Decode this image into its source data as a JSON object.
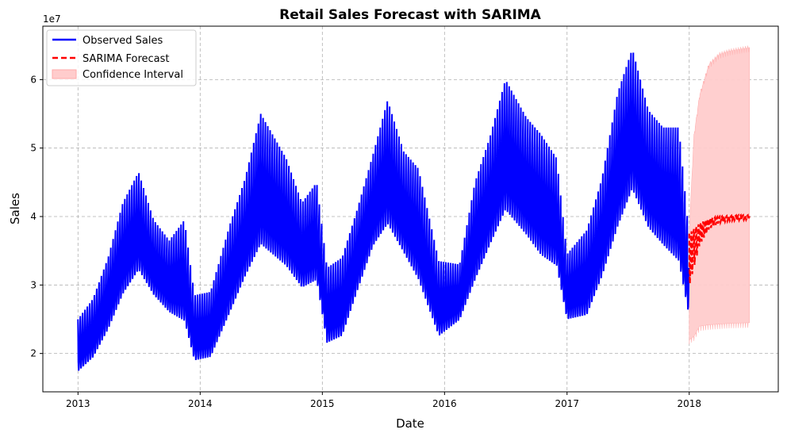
{
  "chart_data": {
    "type": "line",
    "title": "Retail Sales Forecast with SARIMA",
    "xlabel": "Date",
    "ylabel": "Sales",
    "y_scale_label": "1e7",
    "xlim": [
      "2012-09-18",
      "2018-09-24"
    ],
    "ylim": [
      14400000,
      67800000
    ],
    "x_ticks": [
      {
        "value": "2013-01-01",
        "label": "2013"
      },
      {
        "value": "2014-01-01",
        "label": "2014"
      },
      {
        "value": "2015-01-01",
        "label": "2015"
      },
      {
        "value": "2016-01-01",
        "label": "2016"
      },
      {
        "value": "2017-01-01",
        "label": "2017"
      },
      {
        "value": "2018-01-01",
        "label": "2018"
      }
    ],
    "y_ticks": [
      {
        "value": 20000000,
        "label": "2"
      },
      {
        "value": 30000000,
        "label": "3"
      },
      {
        "value": 40000000,
        "label": "4"
      },
      {
        "value": 50000000,
        "label": "5"
      },
      {
        "value": 60000000,
        "label": "6"
      }
    ],
    "grid": true,
    "legend_position": "top-left",
    "series": [
      {
        "name": "Observed Sales",
        "color": "#0000ff",
        "style": "solid",
        "envelope_upper": [
          {
            "x": "2013-01-01",
            "y": 25000000
          },
          {
            "x": "2013-02-15",
            "y": 28000000
          },
          {
            "x": "2013-04-01",
            "y": 34000000
          },
          {
            "x": "2013-05-15",
            "y": 42000000
          },
          {
            "x": "2013-07-01",
            "y": 46500000
          },
          {
            "x": "2013-08-15",
            "y": 39500000
          },
          {
            "x": "2013-10-01",
            "y": 36500000
          },
          {
            "x": "2013-11-15",
            "y": 39500000
          },
          {
            "x": "2013-12-15",
            "y": 28500000
          },
          {
            "x": "2014-02-01",
            "y": 29000000
          },
          {
            "x": "2014-04-01",
            "y": 39000000
          },
          {
            "x": "2014-05-15",
            "y": 45500000
          },
          {
            "x": "2014-07-01",
            "y": 55000000
          },
          {
            "x": "2014-09-15",
            "y": 48500000
          },
          {
            "x": "2014-11-01",
            "y": 42000000
          },
          {
            "x": "2014-12-15",
            "y": 45000000
          },
          {
            "x": "2015-01-15",
            "y": 32500000
          },
          {
            "x": "2015-03-01",
            "y": 34000000
          },
          {
            "x": "2015-04-15",
            "y": 41000000
          },
          {
            "x": "2015-06-01",
            "y": 49000000
          },
          {
            "x": "2015-07-15",
            "y": 57000000
          },
          {
            "x": "2015-09-01",
            "y": 49500000
          },
          {
            "x": "2015-10-15",
            "y": 47000000
          },
          {
            "x": "2015-12-15",
            "y": 33500000
          },
          {
            "x": "2016-02-15",
            "y": 33000000
          },
          {
            "x": "2016-04-01",
            "y": 45000000
          },
          {
            "x": "2016-05-15",
            "y": 51500000
          },
          {
            "x": "2016-07-01",
            "y": 60000000
          },
          {
            "x": "2016-09-01",
            "y": 54500000
          },
          {
            "x": "2016-10-15",
            "y": 52000000
          },
          {
            "x": "2016-12-01",
            "y": 48500000
          },
          {
            "x": "2017-01-01",
            "y": 34500000
          },
          {
            "x": "2017-03-01",
            "y": 38000000
          },
          {
            "x": "2017-04-15",
            "y": 45500000
          },
          {
            "x": "2017-06-01",
            "y": 58000000
          },
          {
            "x": "2017-07-15",
            "y": 64500000
          },
          {
            "x": "2017-09-01",
            "y": 55500000
          },
          {
            "x": "2017-10-15",
            "y": 53000000
          },
          {
            "x": "2017-12-01",
            "y": 53000000
          },
          {
            "x": "2017-12-31",
            "y": 37500000
          }
        ],
        "envelope_lower": [
          {
            "x": "2013-01-01",
            "y": 17000000
          },
          {
            "x": "2013-02-15",
            "y": 19000000
          },
          {
            "x": "2013-04-01",
            "y": 23000000
          },
          {
            "x": "2013-05-15",
            "y": 28000000
          },
          {
            "x": "2013-07-01",
            "y": 31500000
          },
          {
            "x": "2013-08-15",
            "y": 28000000
          },
          {
            "x": "2013-10-01",
            "y": 25500000
          },
          {
            "x": "2013-11-15",
            "y": 24000000
          },
          {
            "x": "2013-12-15",
            "y": 18500000
          },
          {
            "x": "2014-02-01",
            "y": 19000000
          },
          {
            "x": "2014-04-01",
            "y": 25500000
          },
          {
            "x": "2014-05-15",
            "y": 30500000
          },
          {
            "x": "2014-07-01",
            "y": 35000000
          },
          {
            "x": "2014-09-15",
            "y": 32000000
          },
          {
            "x": "2014-11-01",
            "y": 29000000
          },
          {
            "x": "2014-12-15",
            "y": 30000000
          },
          {
            "x": "2015-01-15",
            "y": 21000000
          },
          {
            "x": "2015-03-01",
            "y": 22000000
          },
          {
            "x": "2015-04-15",
            "y": 28500000
          },
          {
            "x": "2015-06-01",
            "y": 35000000
          },
          {
            "x": "2015-07-15",
            "y": 38000000
          },
          {
            "x": "2015-09-01",
            "y": 34000000
          },
          {
            "x": "2015-10-15",
            "y": 30000000
          },
          {
            "x": "2015-12-15",
            "y": 22000000
          },
          {
            "x": "2016-02-15",
            "y": 24500000
          },
          {
            "x": "2016-04-01",
            "y": 30000000
          },
          {
            "x": "2016-05-15",
            "y": 35000000
          },
          {
            "x": "2016-07-01",
            "y": 40000000
          },
          {
            "x": "2016-09-01",
            "y": 36500000
          },
          {
            "x": "2016-10-15",
            "y": 33500000
          },
          {
            "x": "2016-12-01",
            "y": 32000000
          },
          {
            "x": "2017-01-01",
            "y": 24500000
          },
          {
            "x": "2017-03-01",
            "y": 25000000
          },
          {
            "x": "2017-04-15",
            "y": 30500000
          },
          {
            "x": "2017-06-01",
            "y": 37500000
          },
          {
            "x": "2017-07-15",
            "y": 43000000
          },
          {
            "x": "2017-09-01",
            "y": 37500000
          },
          {
            "x": "2017-10-15",
            "y": 35000000
          },
          {
            "x": "2017-12-01",
            "y": 32500000
          },
          {
            "x": "2017-12-31",
            "y": 25000000
          }
        ]
      },
      {
        "name": "SARIMA Forecast",
        "color": "#ff0000",
        "style": "dashed",
        "envelope_upper": [
          {
            "x": "2018-01-01",
            "y": 37500000
          },
          {
            "x": "2018-02-01",
            "y": 39000000
          },
          {
            "x": "2018-03-01",
            "y": 39700000
          },
          {
            "x": "2018-04-01",
            "y": 40000000
          },
          {
            "x": "2018-05-01",
            "y": 40100000
          },
          {
            "x": "2018-06-01",
            "y": 40200000
          },
          {
            "x": "2018-06-30",
            "y": 40200000
          }
        ],
        "envelope_lower": [
          {
            "x": "2018-01-01",
            "y": 29000000
          },
          {
            "x": "2018-02-01",
            "y": 35500000
          },
          {
            "x": "2018-03-01",
            "y": 38000000
          },
          {
            "x": "2018-04-01",
            "y": 39000000
          },
          {
            "x": "2018-05-01",
            "y": 39300000
          },
          {
            "x": "2018-06-01",
            "y": 39400000
          },
          {
            "x": "2018-06-30",
            "y": 39500000
          }
        ]
      },
      {
        "name": "Confidence Interval",
        "color": "#ffcccc",
        "style": "fill",
        "upper": [
          {
            "x": "2018-01-01",
            "y": 38000000
          },
          {
            "x": "2018-01-15",
            "y": 52000000
          },
          {
            "x": "2018-02-01",
            "y": 58000000
          },
          {
            "x": "2018-03-01",
            "y": 62500000
          },
          {
            "x": "2018-04-01",
            "y": 64000000
          },
          {
            "x": "2018-05-01",
            "y": 64500000
          },
          {
            "x": "2018-06-30",
            "y": 65000000
          }
        ],
        "lower": [
          {
            "x": "2018-01-01",
            "y": 22000000
          },
          {
            "x": "2018-01-15",
            "y": 22500000
          },
          {
            "x": "2018-02-01",
            "y": 24000000
          },
          {
            "x": "2018-03-01",
            "y": 24200000
          },
          {
            "x": "2018-04-01",
            "y": 24300000
          },
          {
            "x": "2018-05-01",
            "y": 24400000
          },
          {
            "x": "2018-06-30",
            "y": 24500000
          }
        ]
      }
    ]
  }
}
